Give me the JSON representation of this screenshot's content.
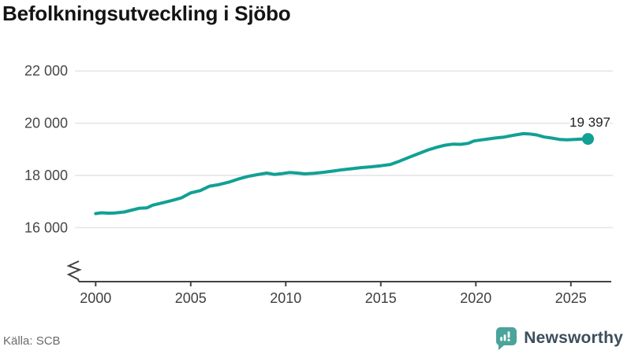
{
  "title": "Befolkningsutveckling i Sjöbo",
  "source": "Källa: SCB",
  "branding": {
    "name": "Newsworthy"
  },
  "colors": {
    "line": "#12A095",
    "dot": "#12A095",
    "grid": "#E4E4E4",
    "axis": "#424242",
    "logo_teal": "#4AA49B",
    "logo_text": "#3D4E5C"
  },
  "chart_data": {
    "type": "line",
    "title": "Befolkningsutveckling i Sjöbo",
    "xlabel": "",
    "ylabel": "",
    "grid": "horizontal",
    "legend": "none",
    "axis_break": true,
    "x_ticks": [
      2000,
      2005,
      2010,
      2015,
      2020,
      2025
    ],
    "y_ticks": [
      {
        "value": 22000,
        "label": "22 000"
      },
      {
        "value": 20000,
        "label": "20 000"
      },
      {
        "value": 18000,
        "label": "18 000"
      },
      {
        "value": 16000,
        "label": "16 000"
      }
    ],
    "xlim": [
      1999.5,
      2026.3
    ],
    "ylim": [
      15400,
      22700
    ],
    "end_label": "19 397",
    "end_value": 19397,
    "series": [
      {
        "name": "Befolkning",
        "points": [
          [
            2000.0,
            16540
          ],
          [
            2000.3,
            16570
          ],
          [
            2000.7,
            16555
          ],
          [
            2001.0,
            16560
          ],
          [
            2001.5,
            16600
          ],
          [
            2002.0,
            16690
          ],
          [
            2002.3,
            16745
          ],
          [
            2002.7,
            16760
          ],
          [
            2003.0,
            16860
          ],
          [
            2003.5,
            16950
          ],
          [
            2004.0,
            17040
          ],
          [
            2004.5,
            17140
          ],
          [
            2005.0,
            17330
          ],
          [
            2005.5,
            17420
          ],
          [
            2006.0,
            17590
          ],
          [
            2006.5,
            17650
          ],
          [
            2007.0,
            17740
          ],
          [
            2007.5,
            17860
          ],
          [
            2008.0,
            17960
          ],
          [
            2008.5,
            18030
          ],
          [
            2009.0,
            18090
          ],
          [
            2009.4,
            18040
          ],
          [
            2009.8,
            18070
          ],
          [
            2010.2,
            18110
          ],
          [
            2010.6,
            18090
          ],
          [
            2011.0,
            18060
          ],
          [
            2011.5,
            18080
          ],
          [
            2012.0,
            18120
          ],
          [
            2012.5,
            18170
          ],
          [
            2013.0,
            18220
          ],
          [
            2013.5,
            18260
          ],
          [
            2014.0,
            18300
          ],
          [
            2014.5,
            18330
          ],
          [
            2015.0,
            18370
          ],
          [
            2015.5,
            18420
          ],
          [
            2016.0,
            18550
          ],
          [
            2016.5,
            18700
          ],
          [
            2017.0,
            18840
          ],
          [
            2017.5,
            18980
          ],
          [
            2018.0,
            19090
          ],
          [
            2018.4,
            19160
          ],
          [
            2018.8,
            19200
          ],
          [
            2019.2,
            19190
          ],
          [
            2019.6,
            19230
          ],
          [
            2019.9,
            19320
          ],
          [
            2020.3,
            19360
          ],
          [
            2020.7,
            19400
          ],
          [
            2021.0,
            19430
          ],
          [
            2021.5,
            19470
          ],
          [
            2022.0,
            19540
          ],
          [
            2022.5,
            19600
          ],
          [
            2022.8,
            19590
          ],
          [
            2023.2,
            19550
          ],
          [
            2023.6,
            19470
          ],
          [
            2024.0,
            19430
          ],
          [
            2024.4,
            19380
          ],
          [
            2024.8,
            19365
          ],
          [
            2025.2,
            19375
          ],
          [
            2025.5,
            19390
          ],
          [
            2025.9,
            19397
          ]
        ]
      }
    ]
  }
}
